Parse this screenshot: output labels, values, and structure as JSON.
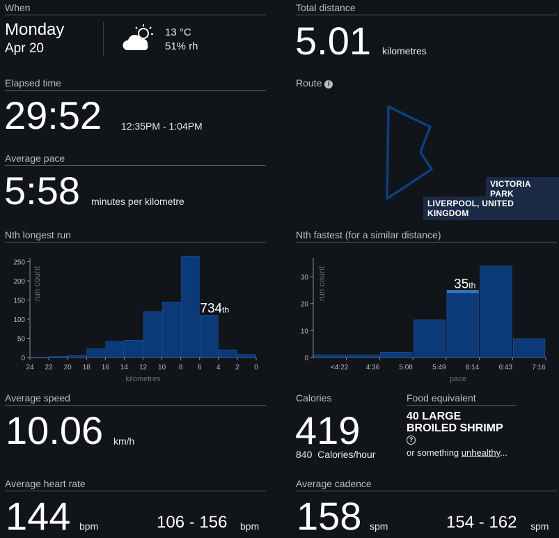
{
  "when": {
    "label": "When",
    "day": "Monday",
    "date": "Apr 20",
    "temp": "13 °C",
    "humidity": "51% rh",
    "weather_icon": "partly-cloudy-icon"
  },
  "distance": {
    "label": "Total distance",
    "value": "5.01",
    "unit": "kilometres"
  },
  "elapsed": {
    "label": "Elapsed time",
    "value": "29:52",
    "range": "12:35PM - 1:04PM"
  },
  "route": {
    "label": "Route",
    "place": "VICTORIA PARK",
    "city": "LIVERPOOL, UNITED KINGDOM"
  },
  "pace": {
    "label": "Average pace",
    "value": "5:58",
    "unit": "minutes per kilometre"
  },
  "nth_longest": {
    "label": "Nth longest run"
  },
  "nth_fastest": {
    "label": "Nth fastest (for a similar distance)"
  },
  "speed": {
    "label": "Average speed",
    "value": "10.06",
    "unit": "km/h"
  },
  "calories": {
    "label": "Calories",
    "value": "419",
    "rate_value": "840",
    "rate_unit": "Calories/hour"
  },
  "food": {
    "label": "Food equivalent",
    "line1": "40 LARGE",
    "line2": "BROILED SHRIMP",
    "help_icon": "question-circle-icon",
    "alt_prefix": "or something ",
    "alt_link": "unhealthy",
    "alt_suffix": "..."
  },
  "heart": {
    "label": "Average heart rate",
    "value": "144",
    "unit": "bpm",
    "range": "106 - 156",
    "range_unit": "bpm"
  },
  "cadence": {
    "label": "Average cadence",
    "value": "158",
    "unit": "spm",
    "range": "154 - 162",
    "range_unit": "spm"
  },
  "chart_data": [
    {
      "type": "bar",
      "xlabel": "kilometres",
      "ylabel": "run count",
      "ylim": [
        0,
        260
      ],
      "yticks": [
        0,
        50,
        100,
        150,
        200,
        250
      ],
      "xticks": [
        "24",
        "22",
        "20",
        "18",
        "16",
        "14",
        "12",
        "10",
        "8",
        "6",
        "4",
        "2",
        "0"
      ],
      "x": [
        23,
        21,
        19,
        17,
        15,
        13,
        11,
        9,
        7,
        5,
        3,
        1
      ],
      "values": [
        0,
        3,
        5,
        23,
        42,
        45,
        120,
        145,
        265,
        110,
        20,
        8
      ],
      "highlight_index": 9,
      "annotation": "734",
      "annotation_suffix": "th"
    },
    {
      "type": "bar",
      "xlabel": "pace",
      "ylabel": "run count",
      "ylim": [
        0,
        37
      ],
      "yticks": [
        0,
        10,
        20,
        30
      ],
      "xticks": [
        "<4:22",
        "4:36",
        "5:08",
        "5:49",
        "6:14",
        "6:43",
        "7:16"
      ],
      "values": [
        1,
        1,
        2,
        14,
        25,
        34,
        7
      ],
      "highlight_index": 4,
      "annotation": "35",
      "annotation_suffix": "th"
    }
  ]
}
